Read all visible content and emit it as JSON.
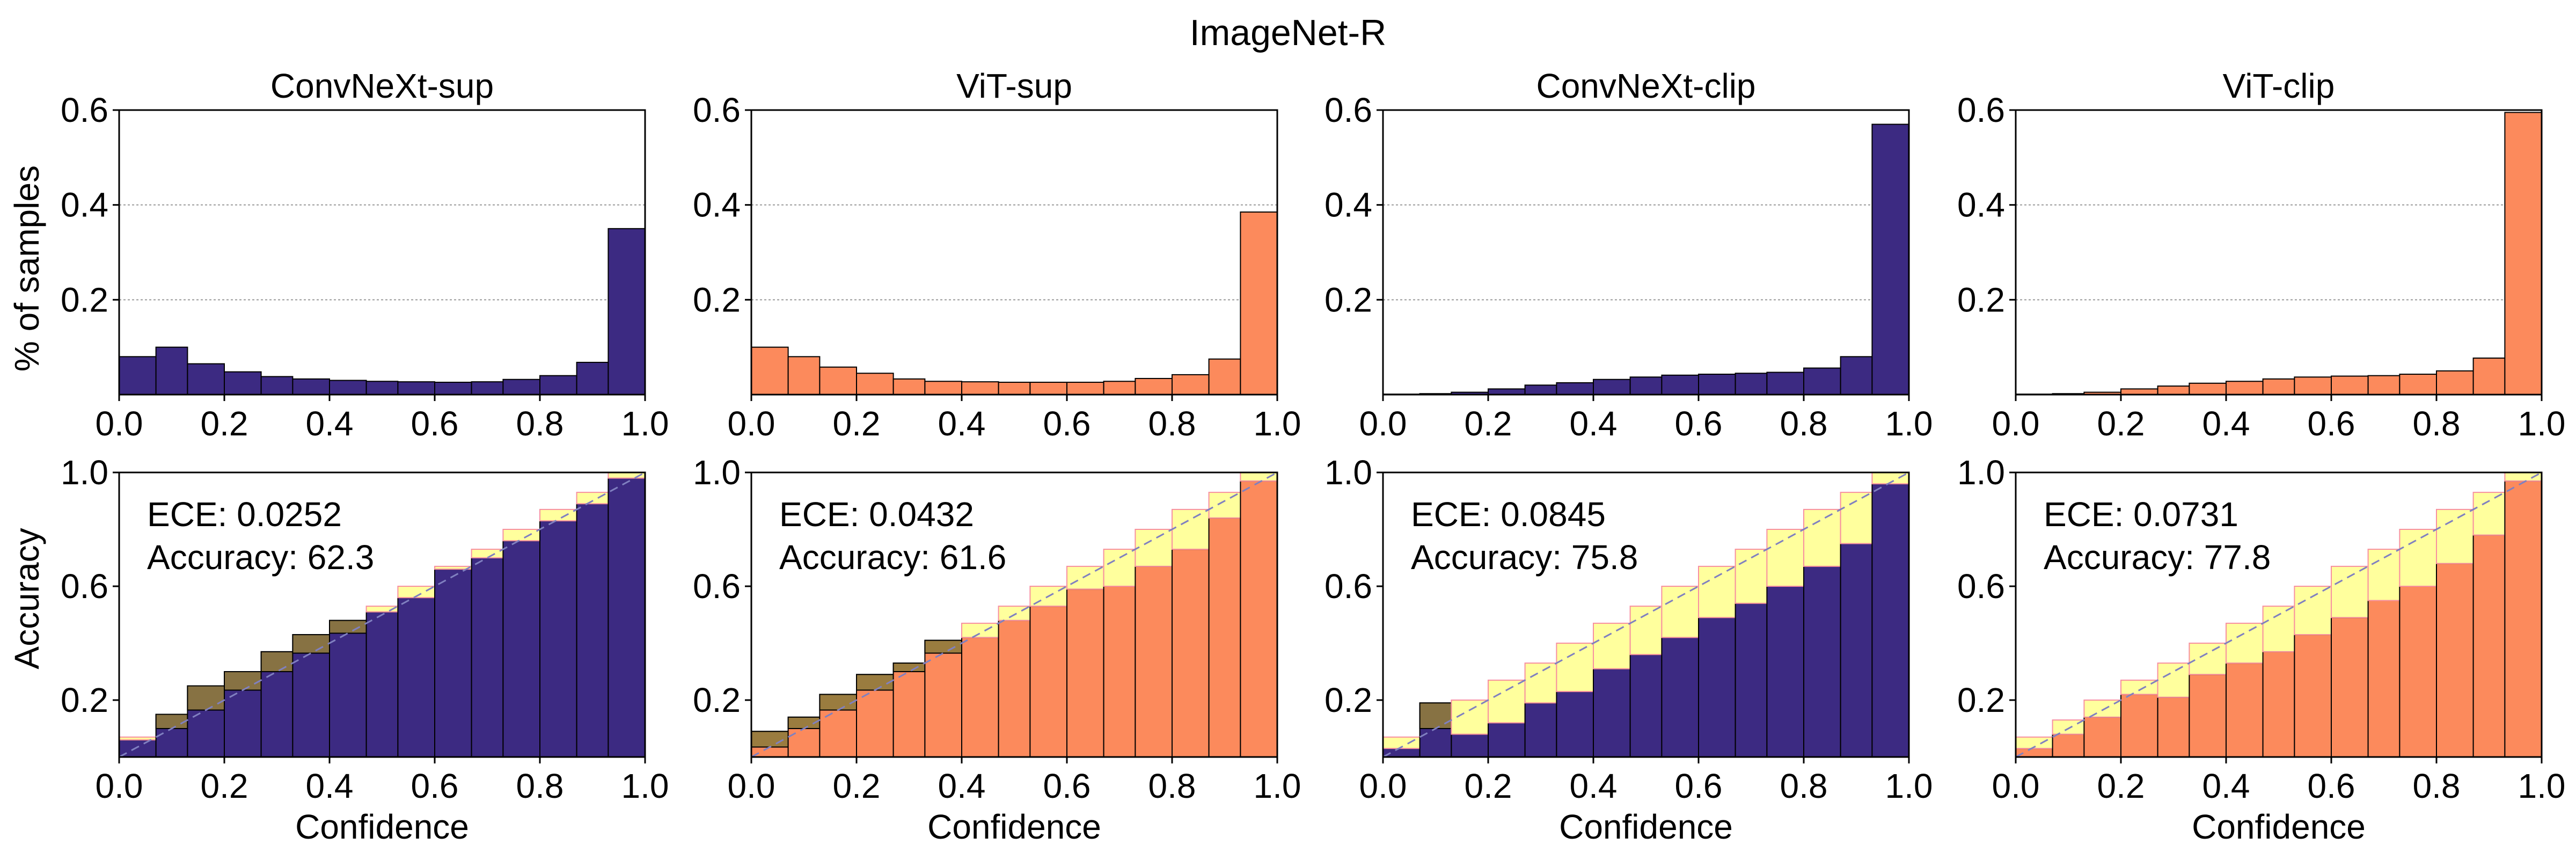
{
  "figure_title": "ImageNet-R",
  "colors": {
    "navy": "#3c2a82",
    "orange": "#fc8a5c",
    "gap_yellow": "#ffff8c",
    "gap_yellow_edge": "#f78fa0",
    "overconf": "#f7b828",
    "underconf": "#8f7a3c",
    "diag": "#8080c0",
    "grid": "#9a9a9a"
  },
  "labels": {
    "hist_ylabel": "% of samples",
    "rel_ylabel": "Accuracy",
    "xlabel": "Confidence",
    "ece_prefix": "ECE: ",
    "acc_prefix": "Accuracy: "
  },
  "chart_data": [
    {
      "type": "bar",
      "title": "ConvNeXt-sup",
      "color": "navy",
      "xlim": [
        0,
        1
      ],
      "histogram": {
        "ylim": [
          0,
          0.6
        ],
        "yticks": [
          "0.2",
          "0.4",
          "0.6"
        ],
        "xticks": [
          "0.0",
          "0.2",
          "0.4",
          "0.6",
          "0.8",
          "1.0"
        ],
        "bin_edges": [
          0,
          0.07,
          0.13,
          0.2,
          0.27,
          0.33,
          0.4,
          0.47,
          0.53,
          0.6,
          0.67,
          0.73,
          0.8,
          0.87,
          0.93,
          1.0
        ],
        "values": [
          0.08,
          0.1,
          0.065,
          0.048,
          0.038,
          0.033,
          0.03,
          0.028,
          0.027,
          0.026,
          0.027,
          0.032,
          0.04,
          0.068,
          0.35
        ]
      },
      "reliability": {
        "ylim": [
          0,
          1
        ],
        "yticks": [
          "0.2",
          "0.6",
          "1.0"
        ],
        "xticks": [
          "0.0",
          "0.2",
          "0.4",
          "0.6",
          "0.8",
          "1.0"
        ],
        "accuracy": [
          0.06,
          0.15,
          0.25,
          0.3,
          0.37,
          0.43,
          0.48,
          0.51,
          0.56,
          0.66,
          0.7,
          0.76,
          0.83,
          0.89,
          0.98
        ],
        "ece": "0.0252",
        "accuracy_pct": "62.3"
      }
    },
    {
      "type": "bar",
      "title": "ViT-sup",
      "color": "orange",
      "xlim": [
        0,
        1
      ],
      "histogram": {
        "ylim": [
          0,
          0.6
        ],
        "yticks": [
          "0.2",
          "0.4",
          "0.6"
        ],
        "xticks": [
          "0.0",
          "0.2",
          "0.4",
          "0.6",
          "0.8",
          "1.0"
        ],
        "bin_edges": [
          0,
          0.07,
          0.13,
          0.2,
          0.27,
          0.33,
          0.4,
          0.47,
          0.53,
          0.6,
          0.67,
          0.73,
          0.8,
          0.87,
          0.93,
          1.0
        ],
        "values": [
          0.1,
          0.08,
          0.058,
          0.045,
          0.033,
          0.028,
          0.027,
          0.026,
          0.026,
          0.026,
          0.028,
          0.034,
          0.042,
          0.075,
          0.385
        ]
      },
      "reliability": {
        "ylim": [
          0,
          1
        ],
        "yticks": [
          "0.2",
          "0.6",
          "1.0"
        ],
        "xticks": [
          "0.0",
          "0.2",
          "0.4",
          "0.6",
          "0.8",
          "1.0"
        ],
        "accuracy": [
          0.09,
          0.14,
          0.22,
          0.29,
          0.33,
          0.41,
          0.42,
          0.48,
          0.53,
          0.59,
          0.6,
          0.67,
          0.73,
          0.84,
          0.97
        ],
        "ece": "0.0432",
        "accuracy_pct": "61.6"
      }
    },
    {
      "type": "bar",
      "title": "ConvNeXt-clip",
      "color": "navy",
      "xlim": [
        0,
        1
      ],
      "histogram": {
        "ylim": [
          0,
          0.6
        ],
        "yticks": [
          "0.2",
          "0.4",
          "0.6"
        ],
        "xticks": [
          "0.0",
          "0.2",
          "0.4",
          "0.6",
          "0.8",
          "1.0"
        ],
        "bin_edges": [
          0,
          0.07,
          0.13,
          0.2,
          0.27,
          0.33,
          0.4,
          0.47,
          0.53,
          0.6,
          0.67,
          0.73,
          0.8,
          0.87,
          0.93,
          1.0
        ],
        "values": [
          0.001,
          0.002,
          0.005,
          0.012,
          0.02,
          0.025,
          0.032,
          0.037,
          0.041,
          0.043,
          0.045,
          0.047,
          0.056,
          0.08,
          0.57
        ]
      },
      "reliability": {
        "ylim": [
          0,
          1
        ],
        "yticks": [
          "0.2",
          "0.6",
          "1.0"
        ],
        "xticks": [
          "0.0",
          "0.2",
          "0.4",
          "0.6",
          "0.8",
          "1.0"
        ],
        "accuracy": [
          0.03,
          0.19,
          0.08,
          0.12,
          0.19,
          0.23,
          0.31,
          0.36,
          0.42,
          0.49,
          0.54,
          0.6,
          0.67,
          0.75,
          0.96
        ],
        "ece": "0.0845",
        "accuracy_pct": "75.8"
      }
    },
    {
      "type": "bar",
      "title": "ViT-clip",
      "color": "orange",
      "xlim": [
        0,
        1
      ],
      "histogram": {
        "ylim": [
          0,
          0.6
        ],
        "yticks": [
          "0.2",
          "0.4",
          "0.6"
        ],
        "xticks": [
          "0.0",
          "0.2",
          "0.4",
          "0.6",
          "0.8",
          "1.0"
        ],
        "bin_edges": [
          0,
          0.07,
          0.13,
          0.2,
          0.27,
          0.33,
          0.4,
          0.47,
          0.53,
          0.6,
          0.67,
          0.73,
          0.8,
          0.87,
          0.93,
          1.0
        ],
        "values": [
          0.001,
          0.002,
          0.005,
          0.012,
          0.018,
          0.024,
          0.028,
          0.033,
          0.037,
          0.039,
          0.04,
          0.043,
          0.05,
          0.077,
          0.595
        ]
      },
      "reliability": {
        "ylim": [
          0,
          1
        ],
        "yticks": [
          "0.2",
          "0.6",
          "1.0"
        ],
        "xticks": [
          "0.0",
          "0.2",
          "0.4",
          "0.6",
          "0.8",
          "1.0"
        ],
        "accuracy": [
          0.03,
          0.08,
          0.14,
          0.22,
          0.21,
          0.29,
          0.33,
          0.37,
          0.43,
          0.49,
          0.55,
          0.6,
          0.68,
          0.78,
          0.97
        ],
        "ece": "0.0731",
        "accuracy_pct": "77.8"
      }
    }
  ]
}
